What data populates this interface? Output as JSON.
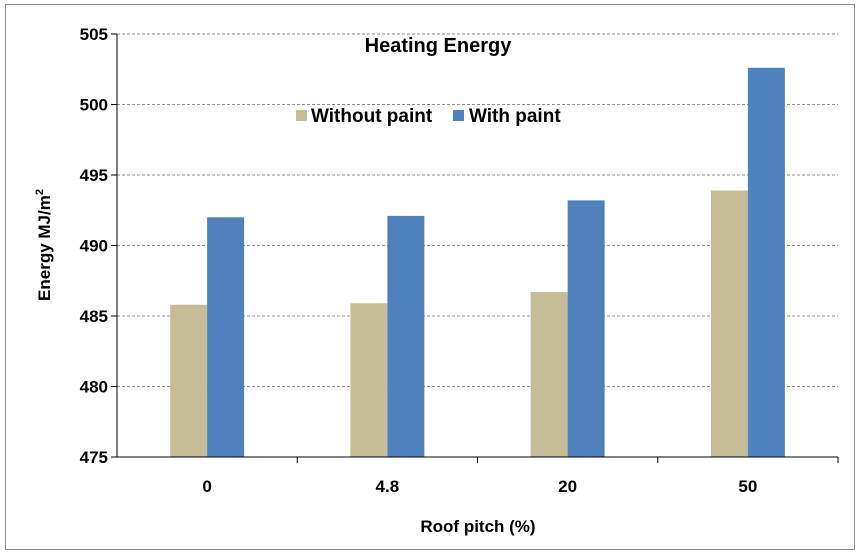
{
  "chart_data": {
    "type": "bar",
    "title": "Heating Energy",
    "xlabel": "Roof pitch (%)",
    "ylabel": "Energy MJ/m",
    "ylabel_superscript": "2",
    "categories": [
      "0",
      "4.8",
      "20",
      "50"
    ],
    "series": [
      {
        "name": "Without paint",
        "color": "#c4bd97",
        "values": [
          485.8,
          485.9,
          486.7,
          493.9
        ]
      },
      {
        "name": "With paint",
        "color": "#4f81bd",
        "values": [
          492.0,
          492.1,
          493.2,
          502.6
        ]
      }
    ],
    "ylim": [
      475,
      505
    ],
    "yticks": [
      475,
      480,
      485,
      490,
      495,
      500,
      505
    ],
    "grid": true,
    "legend_position": "top-center"
  }
}
